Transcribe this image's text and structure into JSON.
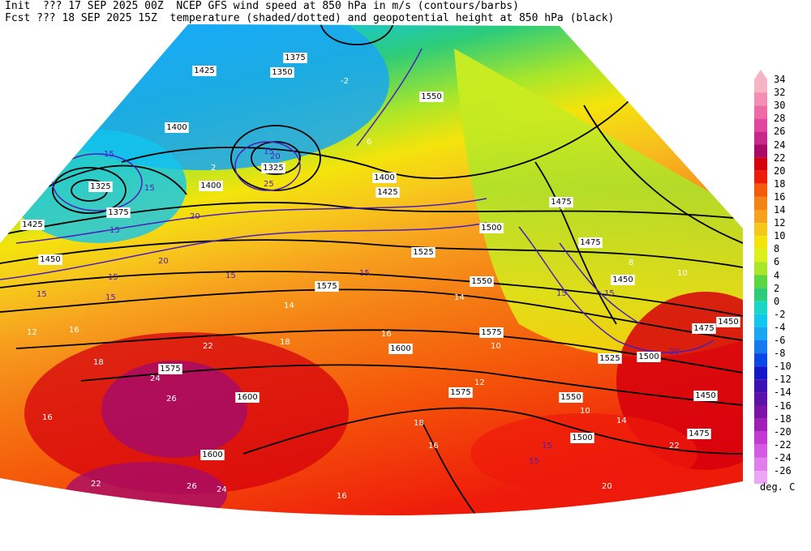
{
  "header": {
    "line1": "Init  ??? 17 SEP 2025 00Z  NCEP GFS wind speed at 850 hPa in m/s (contours/barbs)",
    "line2": "Fcst ??? 18 SEP 2025 15Z  temperature (shaded/dotted) and geopotential height at 850 hPa (black)"
  },
  "colorbar": {
    "units": "deg. C",
    "levels": [
      {
        "label": "34",
        "color": "#f7b4c4"
      },
      {
        "label": "32",
        "color": "#f38fb2"
      },
      {
        "label": "30",
        "color": "#ee6ba6"
      },
      {
        "label": "28",
        "color": "#e0469e"
      },
      {
        "label": "26",
        "color": "#c8288a"
      },
      {
        "label": "24",
        "color": "#a80c66"
      },
      {
        "label": "22",
        "color": "#d6000d"
      },
      {
        "label": "20",
        "color": "#ee1a0a"
      },
      {
        "label": "18",
        "color": "#f55a0a"
      },
      {
        "label": "16",
        "color": "#f58216"
      },
      {
        "label": "14",
        "color": "#f7a21e"
      },
      {
        "label": "12",
        "color": "#f7c81c"
      },
      {
        "label": "10",
        "color": "#f3e40c"
      },
      {
        "label": "8",
        "color": "#dcf01a"
      },
      {
        "label": "6",
        "color": "#a8e62a"
      },
      {
        "label": "4",
        "color": "#5cd640"
      },
      {
        "label": "2",
        "color": "#2ccc7a"
      },
      {
        "label": "0",
        "color": "#1ad6c6"
      },
      {
        "label": "-2",
        "color": "#12c6ee"
      },
      {
        "label": "-4",
        "color": "#1aa6f2"
      },
      {
        "label": "-6",
        "color": "#1878f0"
      },
      {
        "label": "-8",
        "color": "#0a46e6"
      },
      {
        "label": "-10",
        "color": "#1218c8"
      },
      {
        "label": "-12",
        "color": "#3c10b4"
      },
      {
        "label": "-14",
        "color": "#5a12a8"
      },
      {
        "label": "-16",
        "color": "#7c14a6"
      },
      {
        "label": "-18",
        "color": "#a020b6"
      },
      {
        "label": "-20",
        "color": "#c23ad2"
      },
      {
        "label": "-22",
        "color": "#d45ae2"
      },
      {
        "label": "-24",
        "color": "#e07eec"
      },
      {
        "label": "-26",
        "color": "#eca6f4"
      }
    ]
  },
  "height_labels": [
    {
      "text": "1375"
    },
    {
      "text": "1350"
    },
    {
      "text": "1425"
    },
    {
      "text": "1400"
    },
    {
      "text": "1400"
    },
    {
      "text": "1325"
    },
    {
      "text": "1375"
    },
    {
      "text": "1425"
    },
    {
      "text": "1450"
    },
    {
      "text": "1325"
    },
    {
      "text": "1400"
    },
    {
      "text": "1425"
    },
    {
      "text": "1475"
    },
    {
      "text": "1500"
    },
    {
      "text": "1475"
    },
    {
      "text": "1525"
    },
    {
      "text": "1550"
    },
    {
      "text": "1575"
    },
    {
      "text": "1575"
    },
    {
      "text": "1600"
    },
    {
      "text": "1575"
    },
    {
      "text": "1600"
    },
    {
      "text": "1600"
    },
    {
      "text": "1575"
    },
    {
      "text": "1550"
    },
    {
      "text": "1525"
    },
    {
      "text": "1500"
    },
    {
      "text": "1475"
    },
    {
      "text": "1450"
    },
    {
      "text": "1450"
    },
    {
      "text": "1475"
    },
    {
      "text": "1450"
    },
    {
      "text": "1500"
    },
    {
      "text": "1550"
    }
  ],
  "wind_labels": [
    {
      "text": "15"
    },
    {
      "text": "15"
    },
    {
      "text": "20"
    },
    {
      "text": "15"
    },
    {
      "text": "25"
    },
    {
      "text": "20"
    },
    {
      "text": "15"
    },
    {
      "text": "15"
    },
    {
      "text": "15"
    },
    {
      "text": "15"
    },
    {
      "text": "20"
    },
    {
      "text": "15"
    },
    {
      "text": "15"
    },
    {
      "text": "15"
    },
    {
      "text": "15"
    },
    {
      "text": "15"
    },
    {
      "text": "20"
    },
    {
      "text": "15"
    }
  ],
  "temp_labels": [
    {
      "text": "6"
    },
    {
      "text": "-2"
    },
    {
      "text": "2"
    },
    {
      "text": "4"
    },
    {
      "text": "8"
    },
    {
      "text": "10"
    },
    {
      "text": "14"
    },
    {
      "text": "16"
    },
    {
      "text": "12"
    },
    {
      "text": "18"
    },
    {
      "text": "22"
    },
    {
      "text": "26"
    },
    {
      "text": "24"
    },
    {
      "text": "18"
    },
    {
      "text": "16"
    },
    {
      "text": "14"
    },
    {
      "text": "12"
    },
    {
      "text": "10"
    },
    {
      "text": "16"
    },
    {
      "text": "18"
    },
    {
      "text": "20"
    },
    {
      "text": "22"
    },
    {
      "text": "24"
    },
    {
      "text": "26"
    },
    {
      "text": "22"
    },
    {
      "text": "16"
    },
    {
      "text": "14"
    },
    {
      "text": "16"
    },
    {
      "text": "10"
    }
  ]
}
